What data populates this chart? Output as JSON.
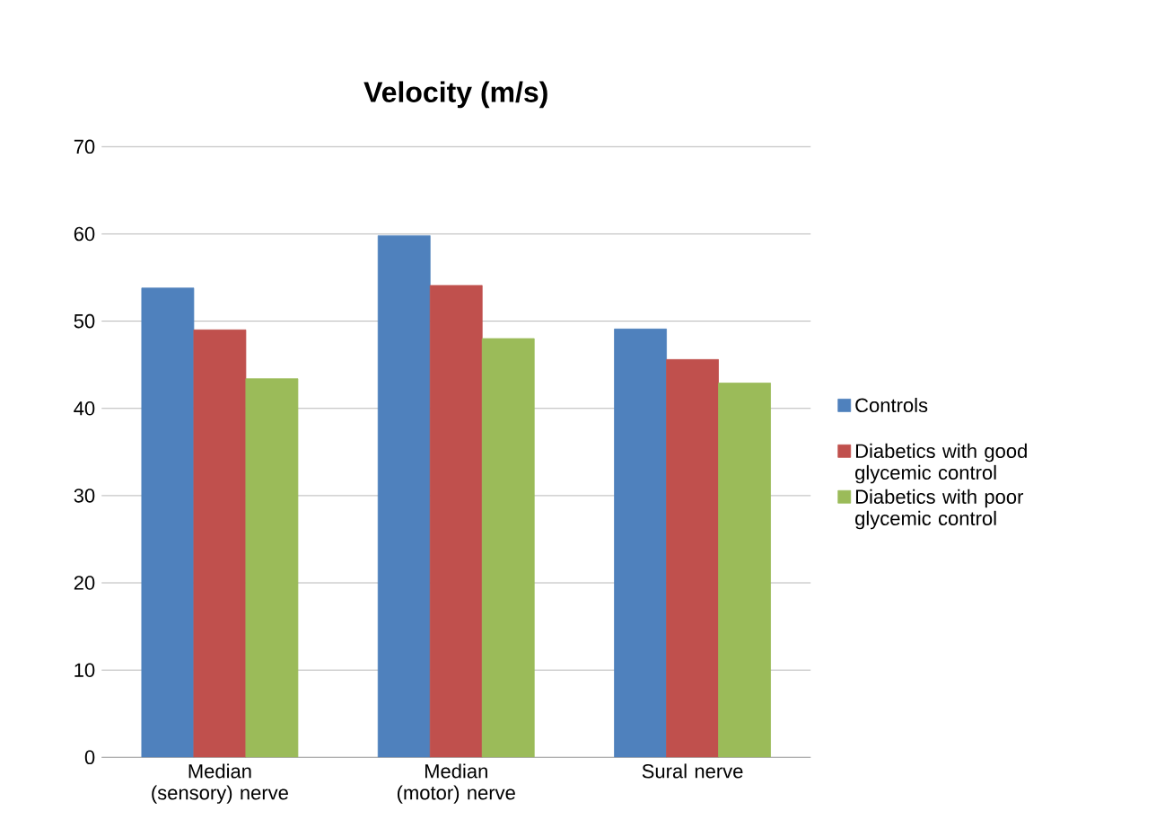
{
  "chart_data": {
    "type": "bar",
    "title": "Velocity (m/s)",
    "categories": [
      "Median (sensory) nerve",
      "Median (motor) nerve",
      "Sural nerve"
    ],
    "series": [
      {
        "name": "Controls",
        "color": "#4f81bd",
        "values": [
          53.8,
          59.8,
          49.1
        ]
      },
      {
        "name": "Diabetics with good glycemic control",
        "color": "#c0504d",
        "values": [
          49.0,
          54.1,
          45.6
        ]
      },
      {
        "name": "Diabetics with poor glycemic control",
        "color": "#9bbb59",
        "values": [
          43.4,
          48.0,
          42.9
        ]
      }
    ],
    "ylim": [
      0,
      70
    ],
    "yticks": [
      0,
      10,
      20,
      30,
      40,
      50,
      60,
      70
    ],
    "grid": "y",
    "legend": "right"
  }
}
